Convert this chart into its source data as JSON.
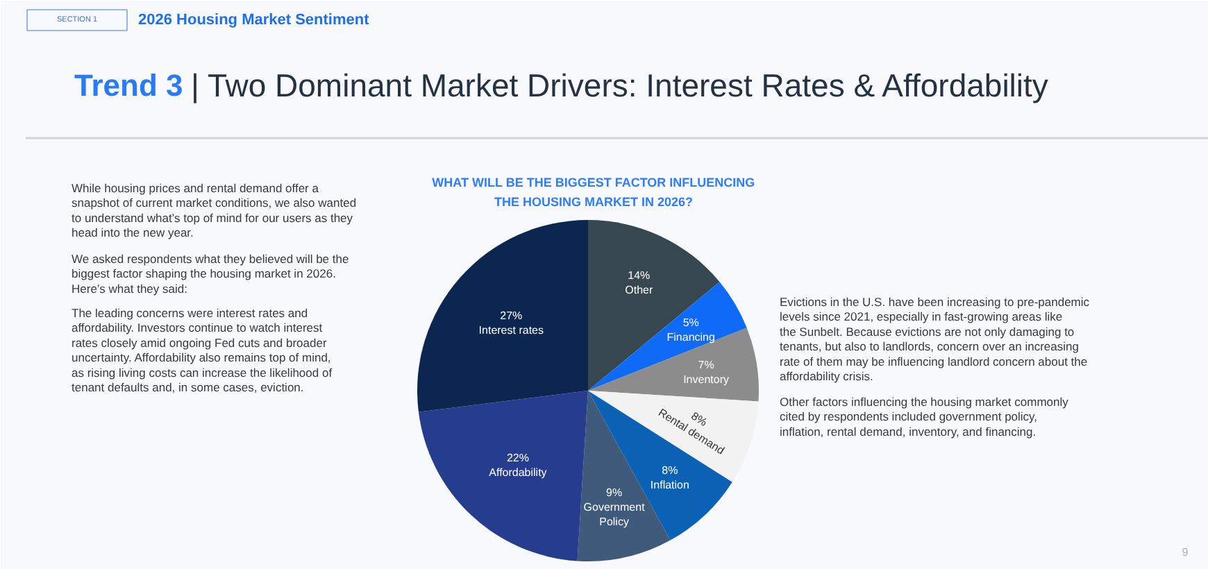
{
  "chart_data": {
    "type": "pie",
    "title": "WHAT WILL BE THE BIGGEST FACTOR INFLUENCING THE HOUSING MARKET IN 2026?",
    "categories": [
      "Other",
      "Financing",
      "Inventory",
      "Rental demand",
      "Inflation",
      "Government Policy",
      "Affordability",
      "Interest rates"
    ],
    "values": [
      14,
      5,
      7,
      8,
      8,
      9,
      22,
      27
    ],
    "value_labels": [
      "14%",
      "5%",
      "7%",
      "8%",
      "8%",
      "9%",
      "22%",
      "27%"
    ],
    "colors": [
      "#37474f",
      "#0f6af5",
      "#8c8c8c",
      "#f2f2f2",
      "#0b62b5",
      "#3f5a7a",
      "#263d8f",
      "#0b2750"
    ],
    "annotations": [
      "SECTION 1",
      "2026 Housing Market Sentiment",
      "Trend 3",
      "| Two Dominant Market Drivers: Interest Rates & Affordability",
      "While housing prices and rental demand offer a snapshot of current market conditions, we also wanted to understand what’s top of mind for our users as they head into the new year.",
      "We asked respondents what they believed will be the biggest factor shaping the housing market in 2026. Here’s what they said:",
      "The leading concerns were interest rates and affordability. Investors continue to watch interest rates closely amid ongoing Fed cuts and broader uncertainty. Affordability also remains top of mind, as rising living costs can increase the likelihood of tenant defaults and, in some cases, eviction.",
      "Evictions in the U.S. have been increasing to pre-pandemic levels since 2021, especially in fast-growing areas like the Sunbelt. Because evictions are not only damaging to tenants, but also to landlords, concern over an increasing rate of them may be influencing landlord concern about the affordability crisis.",
      "Other factors influencing the housing market commonly cited by respondents included government policy, inflation, rental demand, inventory, and financing.",
      "9"
    ]
  }
}
